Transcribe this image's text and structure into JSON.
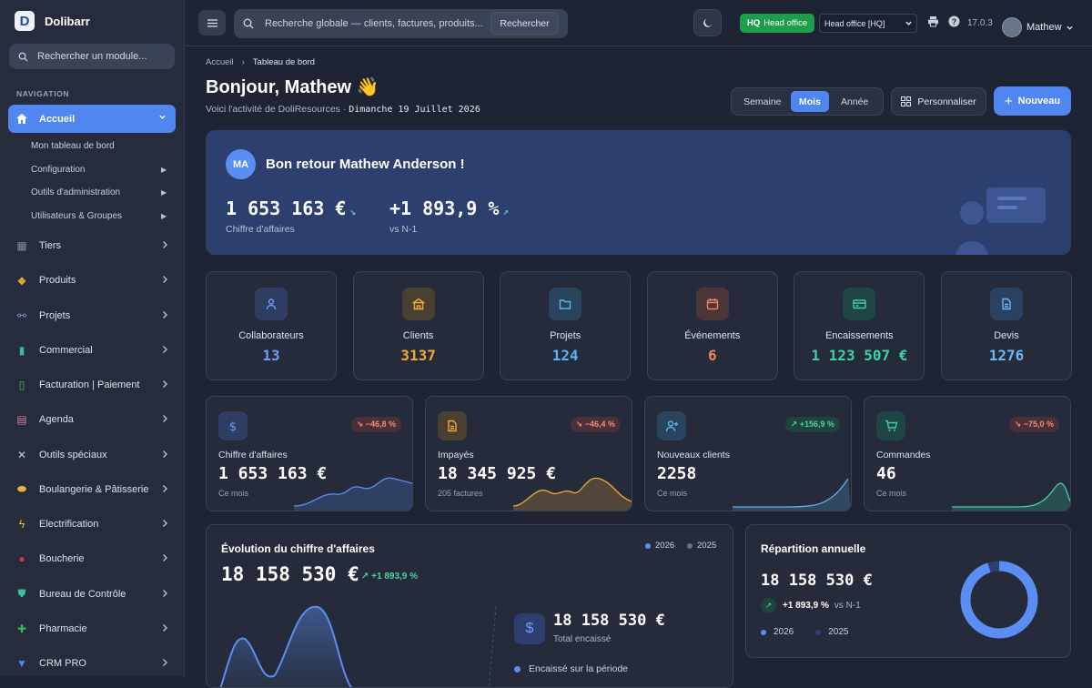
{
  "brand": {
    "logo_letter": "D",
    "name": "Dolibarr"
  },
  "sidebar": {
    "search_placeholder": "Rechercher un module...",
    "section_title": "NAVIGATION",
    "active_item": "Accueil",
    "sub_items": [
      {
        "label": "Mon tableau de bord",
        "arrow": false
      },
      {
        "label": "Configuration",
        "arrow": true
      },
      {
        "label": "Outils d'administration",
        "arrow": true
      },
      {
        "label": "Utilisateurs & Groupes",
        "arrow": true
      }
    ],
    "items": [
      {
        "label": "Tiers",
        "icon": "building-icon",
        "color": "#7f8ba3"
      },
      {
        "label": "Produits",
        "icon": "box-icon",
        "color": "#d8a534"
      },
      {
        "label": "Projets",
        "icon": "project-icon",
        "color": "#9b8ee0"
      },
      {
        "label": "Commercial",
        "icon": "briefcase-icon",
        "color": "#36b5a0"
      },
      {
        "label": "Facturation | Paiement",
        "icon": "invoice-icon",
        "color": "#4caf50"
      },
      {
        "label": "Agenda",
        "icon": "calendar-icon",
        "color": "#d47aa0"
      },
      {
        "label": "Outils spéciaux",
        "icon": "tools-icon",
        "color": "#c7ccd6"
      },
      {
        "label": "Boulangerie & Pâtisserie",
        "icon": "bread-icon",
        "color": "#e0b23c"
      },
      {
        "label": "Electrification",
        "icon": "lightning-icon",
        "color": "#f2c230"
      },
      {
        "label": "Boucherie",
        "icon": "meat-icon",
        "color": "#d23a3a"
      },
      {
        "label": "Bureau de Contrôle",
        "icon": "shield-icon",
        "color": "#3fbf9a"
      },
      {
        "label": "Pharmacie",
        "icon": "cross-icon",
        "color": "#3cba54"
      },
      {
        "label": "CRM PRO",
        "icon": "crm-icon",
        "color": "#4f86f0"
      }
    ]
  },
  "topbar": {
    "search_placeholder": "Recherche globale — clients, factures, produits...",
    "search_button": "Rechercher",
    "hq_badge_strong": "HQ",
    "hq_badge_text": "Head office",
    "entity_select": "Head office [HQ]",
    "version": "17.0.3",
    "user_name": "Mathew"
  },
  "page": {
    "breadcrumb_home": "Accueil",
    "breadcrumb_current": "Tableau de bord",
    "greeting": "Bonjour, Mathew 👋",
    "subtitle_prefix": "Voici l'activité de DoliResources ·",
    "date": "Dimanche 19 Juillet 2026",
    "periods": [
      "Semaine",
      "Mois",
      "Année"
    ],
    "active_period": "Mois",
    "customize_label": "Personnaliser",
    "new_label": "Nouveau"
  },
  "hero": {
    "initials": "MA",
    "welcome": "Bon retour Mathew Anderson !",
    "revenue_value": "1 653 163 €",
    "revenue_label": "Chiffre d'affaires",
    "growth_value": "+1 893,9 %",
    "growth_label": "vs N-1"
  },
  "stats": [
    {
      "label": "Collaborateurs",
      "value": "13",
      "icon": "user-icon",
      "color": "#6f9bf5",
      "bg": "#2f3d63"
    },
    {
      "label": "Clients",
      "value": "3137",
      "icon": "bank-icon",
      "color": "#f0a838",
      "bg": "#4a4031"
    },
    {
      "label": "Projets",
      "value": "124",
      "icon": "folder-icon",
      "color": "#5bb4ef",
      "bg": "#29445c"
    },
    {
      "label": "Événements",
      "value": "6",
      "icon": "calendar-icon",
      "color": "#ee8266",
      "bg": "#4b3537"
    },
    {
      "label": "Encaissements",
      "value": "1 123 507 €",
      "icon": "card-icon",
      "color": "#3fd1a2",
      "bg": "#1f4643"
    },
    {
      "label": "Devis",
      "value": "1276",
      "icon": "document-icon",
      "color": "#6fb6f2",
      "bg": "#2b4160"
    }
  ],
  "kpis": [
    {
      "label": "Chiffre d'affaires",
      "value": "1 653 163 €",
      "sub": "Ce mois",
      "badge": "↘ −46,8 %",
      "trend": "neg",
      "icon": "dollar-icon",
      "color": "#6f9bf5",
      "bg": "#2f3d63"
    },
    {
      "label": "Impayés",
      "value": "18 345 925 €",
      "sub": "205 factures",
      "badge": "↘ −46,4 %",
      "trend": "neg",
      "icon": "document-icon",
      "color": "#f0a838",
      "bg": "#4a4031"
    },
    {
      "label": "Nouveaux clients",
      "value": "2258",
      "sub": "Ce mois",
      "badge": "↗ +156,9 %",
      "trend": "pos",
      "icon": "add-user-icon",
      "color": "#5bb4ef",
      "bg": "#29445c"
    },
    {
      "label": "Commandes",
      "value": "46",
      "sub": "Ce mois",
      "badge": "↘ −75,0 %",
      "trend": "neg",
      "icon": "cart-icon",
      "color": "#3fd1a2",
      "bg": "#1f4643"
    }
  ],
  "evolution": {
    "title": "Évolution du chiffre d'affaires",
    "total": "18 158 530 €",
    "growth": "↗ +1 893,9 %",
    "legend": [
      {
        "label": "2026",
        "color": "#5b8ef3"
      },
      {
        "label": "2025",
        "color": "#6b7385"
      }
    ],
    "total_value": "18 158 530 €",
    "total_label": "Total encaissé",
    "period_label": "Encaissé sur la période"
  },
  "repartition": {
    "title": "Répartition annuelle",
    "total": "18 158 530 €",
    "growth": "+1 893,9 %",
    "growth_suffix": "vs N-1",
    "legend": [
      {
        "label": "2026",
        "color": "#5b8ef3"
      },
      {
        "label": "2025",
        "color": "#2d3f6e"
      }
    ],
    "share_2026": 0.95
  }
}
